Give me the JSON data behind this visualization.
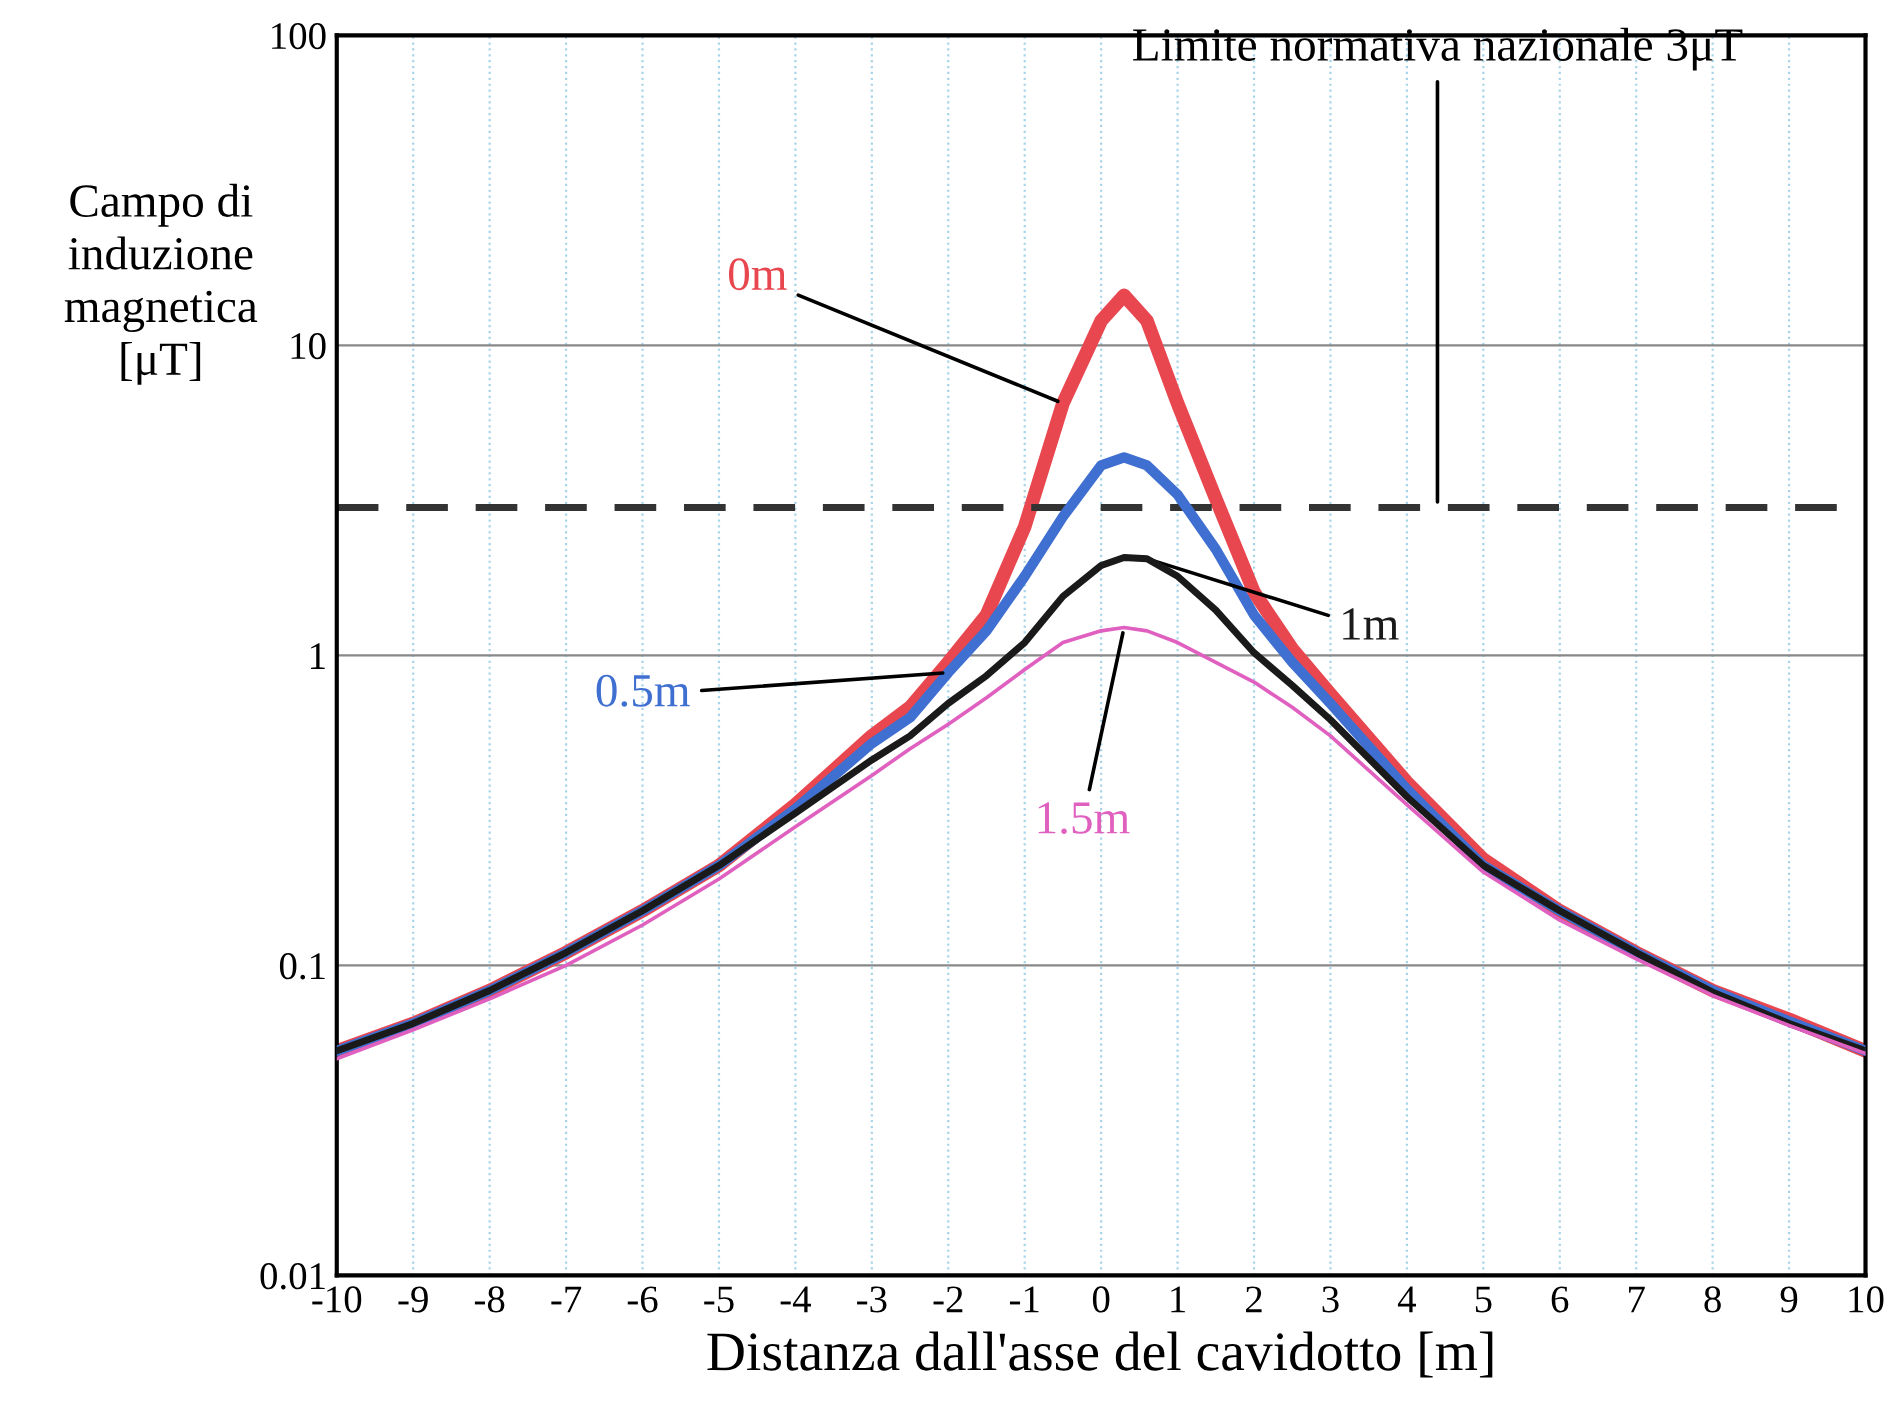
{
  "chart_data": {
    "type": "line",
    "xlabel": "Distanza dall'asse del cavidotto [m]",
    "ylabel": "Campo di\ninduzione\nmagnetica\n[μT]",
    "x": [
      -10,
      -9,
      -8,
      -7,
      -6,
      -5,
      -4,
      -3,
      -2.5,
      -2,
      -1.5,
      -1,
      -0.5,
      0,
      0.3,
      0.6,
      1,
      1.5,
      2,
      2.5,
      3,
      4,
      5,
      6,
      7,
      8,
      9,
      10
    ],
    "series": [
      {
        "name": "0m",
        "color": "#e8474f",
        "values": [
          0.053,
          0.065,
          0.083,
          0.11,
          0.15,
          0.21,
          0.33,
          0.55,
          0.68,
          0.95,
          1.35,
          2.6,
          6.5,
          12,
          14.5,
          12,
          6.5,
          3.2,
          1.6,
          1.05,
          0.75,
          0.39,
          0.22,
          0.15,
          0.11,
          0.083,
          0.067,
          0.053
        ]
      },
      {
        "name": "0.5m",
        "color": "#3f6fd0",
        "values": [
          0.053,
          0.065,
          0.083,
          0.11,
          0.15,
          0.21,
          0.32,
          0.52,
          0.63,
          0.88,
          1.2,
          1.8,
          2.8,
          4.1,
          4.35,
          4.1,
          3.3,
          2.2,
          1.35,
          0.95,
          0.7,
          0.37,
          0.21,
          0.15,
          0.11,
          0.083,
          0.066,
          0.053
        ]
      },
      {
        "name": "1m",
        "color": "#1a1a1a",
        "values": [
          0.053,
          0.065,
          0.083,
          0.11,
          0.15,
          0.21,
          0.31,
          0.46,
          0.55,
          0.7,
          0.86,
          1.1,
          1.55,
          1.95,
          2.07,
          2.05,
          1.8,
          1.4,
          1.02,
          0.8,
          0.62,
          0.35,
          0.21,
          0.15,
          0.11,
          0.082,
          0.065,
          0.053
        ]
      },
      {
        "name": "1.5m",
        "color": "#e060c0",
        "values": [
          0.05,
          0.062,
          0.078,
          0.1,
          0.135,
          0.19,
          0.28,
          0.41,
          0.5,
          0.6,
          0.73,
          0.9,
          1.1,
          1.2,
          1.23,
          1.2,
          1.1,
          0.95,
          0.82,
          0.68,
          0.55,
          0.33,
          0.2,
          0.14,
          0.105,
          0.08,
          0.064,
          0.052
        ]
      }
    ],
    "ref_lines": [
      {
        "axis": "y",
        "value": 3,
        "label": "Limite normativa nazionale 3μT",
        "color": "#333333",
        "line_style": "dashed"
      }
    ],
    "log": "y",
    "xlim": [
      -10,
      10
    ],
    "xticks": [
      -10,
      -9,
      -8,
      -7,
      -6,
      -5,
      -4,
      -3,
      -2,
      -1,
      0,
      1,
      2,
      3,
      4,
      5,
      6,
      7,
      8,
      9,
      10
    ],
    "ylim": [
      0.01,
      100
    ],
    "yticks": [
      0.01,
      0.1,
      1,
      10,
      100
    ],
    "grid": true,
    "legend": false,
    "marker": "none",
    "line_style": "solid"
  }
}
